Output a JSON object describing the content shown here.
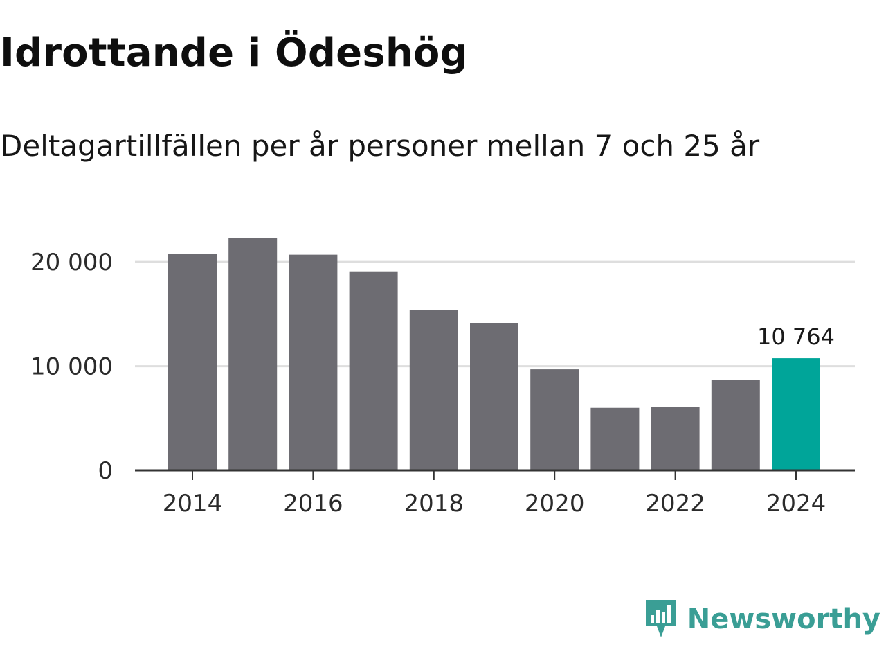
{
  "header": {
    "title": "Idrottande i Ödeshög",
    "subtitle": "Deltagartillfällen per år personer mellan 7 och 25 år"
  },
  "brand": {
    "name": "Newsworthy",
    "color": "#3a9e95"
  },
  "chart_data": {
    "type": "bar",
    "title": "Idrottande i Ödeshög",
    "subtitle": "Deltagartillfällen per år personer mellan 7 och 25 år",
    "xlabel": "",
    "ylabel": "",
    "categories": [
      "2014",
      "2015",
      "2016",
      "2017",
      "2018",
      "2019",
      "2020",
      "2021",
      "2022",
      "2023",
      "2024"
    ],
    "values": [
      20800,
      22300,
      20700,
      19100,
      15400,
      14100,
      9700,
      6000,
      6100,
      8700,
      10764
    ],
    "ylim": [
      0,
      24000
    ],
    "yticks": [
      0,
      10000,
      20000
    ],
    "ytick_labels": [
      "0",
      "10 000",
      "20 000"
    ],
    "xtick_labels": [
      "2014",
      "2016",
      "2018",
      "2020",
      "2022",
      "2024"
    ],
    "highlight_index": 10,
    "highlight_label": "10 764",
    "bar_color": "#6d6c72",
    "highlight_color": "#00a599",
    "grid": true,
    "grid_color": "#dedede",
    "axis_color": "#333333"
  }
}
